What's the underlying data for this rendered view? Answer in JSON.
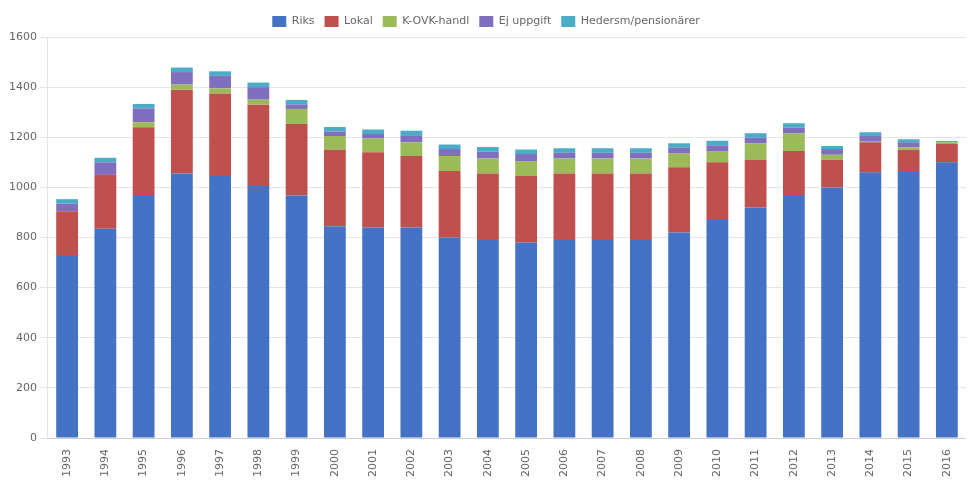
{
  "chart_data": {
    "type": "bar",
    "stacked": true,
    "grid": true,
    "legend": "top",
    "categories": [
      "1993",
      "1994",
      "1995",
      "1996",
      "1997",
      "1998",
      "1999",
      "2000",
      "2001",
      "2002",
      "2003",
      "2004",
      "2005",
      "2006",
      "2007",
      "2008",
      "2009",
      "2010",
      "2011",
      "2012",
      "2013",
      "2014",
      "2015",
      "2016"
    ],
    "series": [
      {
        "name": "Riks",
        "color": "#4472C4",
        "values": [
          730,
          835,
          970,
          1055,
          1045,
          1005,
          968,
          845,
          840,
          840,
          800,
          790,
          780,
          790,
          790,
          790,
          820,
          870,
          920,
          970,
          1000,
          1060,
          1065,
          1100
        ]
      },
      {
        "name": "Lokal",
        "color": "#C0504D",
        "values": [
          175,
          215,
          270,
          335,
          330,
          325,
          285,
          305,
          300,
          285,
          265,
          265,
          265,
          265,
          265,
          265,
          260,
          230,
          190,
          175,
          110,
          120,
          85,
          75
        ]
      },
      {
        "name": "K-OVK-handl",
        "color": "#9BBB59",
        "values": [
          0,
          0,
          20,
          20,
          20,
          20,
          60,
          55,
          55,
          55,
          60,
          60,
          60,
          60,
          60,
          60,
          55,
          45,
          65,
          70,
          20,
          5,
          10,
          5
        ]
      },
      {
        "name": "Ej uppgift",
        "color": "#7F6FBE",
        "values": [
          30,
          50,
          55,
          50,
          50,
          50,
          18,
          18,
          18,
          28,
          28,
          28,
          28,
          23,
          23,
          23,
          23,
          23,
          23,
          23,
          23,
          23,
          20,
          0
        ]
      },
      {
        "name": "Hedersm/pensionärer",
        "color": "#4BACC6",
        "values": [
          18,
          18,
          18,
          18,
          18,
          18,
          18,
          18,
          18,
          18,
          18,
          18,
          18,
          18,
          18,
          18,
          18,
          18,
          18,
          18,
          12,
          12,
          12,
          5
        ]
      }
    ],
    "ylim": [
      0,
      1600
    ],
    "yticks": [
      0,
      200,
      400,
      600,
      800,
      1000,
      1200,
      1400,
      1600
    ]
  }
}
